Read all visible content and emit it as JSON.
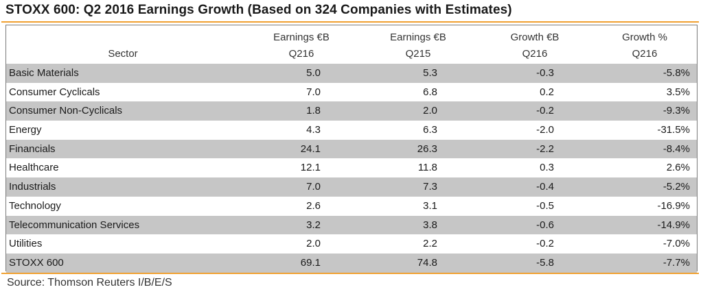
{
  "title": "STOXX 600: Q2 2016 Earnings Growth (Based on 324 Companies with Estimates)",
  "header": {
    "sector": "Sector",
    "col1_line1": "Earnings €B",
    "col1_line2": "Q216",
    "col2_line1": "Earnings €B",
    "col2_line2": "Q215",
    "col3_line1": "Growth €B",
    "col3_line2": "Q216",
    "col4_line1": "Growth %",
    "col4_line2": "Q216"
  },
  "rows": [
    {
      "sector": "Basic Materials",
      "earn_q216": "5.0",
      "earn_q215": "5.3",
      "growth_eur": "-0.3",
      "growth_pct": "-5.8%"
    },
    {
      "sector": "Consumer Cyclicals",
      "earn_q216": "7.0",
      "earn_q215": "6.8",
      "growth_eur": "0.2",
      "growth_pct": "3.5%"
    },
    {
      "sector": "Consumer Non-Cyclicals",
      "earn_q216": "1.8",
      "earn_q215": "2.0",
      "growth_eur": "-0.2",
      "growth_pct": "-9.3%"
    },
    {
      "sector": "Energy",
      "earn_q216": "4.3",
      "earn_q215": "6.3",
      "growth_eur": "-2.0",
      "growth_pct": "-31.5%"
    },
    {
      "sector": "Financials",
      "earn_q216": "24.1",
      "earn_q215": "26.3",
      "growth_eur": "-2.2",
      "growth_pct": "-8.4%"
    },
    {
      "sector": "Healthcare",
      "earn_q216": "12.1",
      "earn_q215": "11.8",
      "growth_eur": "0.3",
      "growth_pct": "2.6%"
    },
    {
      "sector": "Industrials",
      "earn_q216": "7.0",
      "earn_q215": "7.3",
      "growth_eur": "-0.4",
      "growth_pct": "-5.2%"
    },
    {
      "sector": "Technology",
      "earn_q216": "2.6",
      "earn_q215": "3.1",
      "growth_eur": "-0.5",
      "growth_pct": "-16.9%"
    },
    {
      "sector": "Telecommunication Services",
      "earn_q216": "3.2",
      "earn_q215": "3.8",
      "growth_eur": "-0.6",
      "growth_pct": "-14.9%"
    },
    {
      "sector": "Utilities",
      "earn_q216": "2.0",
      "earn_q215": "2.2",
      "growth_eur": "-0.2",
      "growth_pct": "-7.0%"
    },
    {
      "sector": "STOXX 600",
      "earn_q216": "69.1",
      "earn_q215": "74.8",
      "growth_eur": "-5.8",
      "growth_pct": "-7.7%"
    }
  ],
  "source": "Source: Thomson Reuters I/B/E/S",
  "colors": {
    "accent_rule": "#f0a030",
    "shaded_row": "#c6c6c6"
  }
}
